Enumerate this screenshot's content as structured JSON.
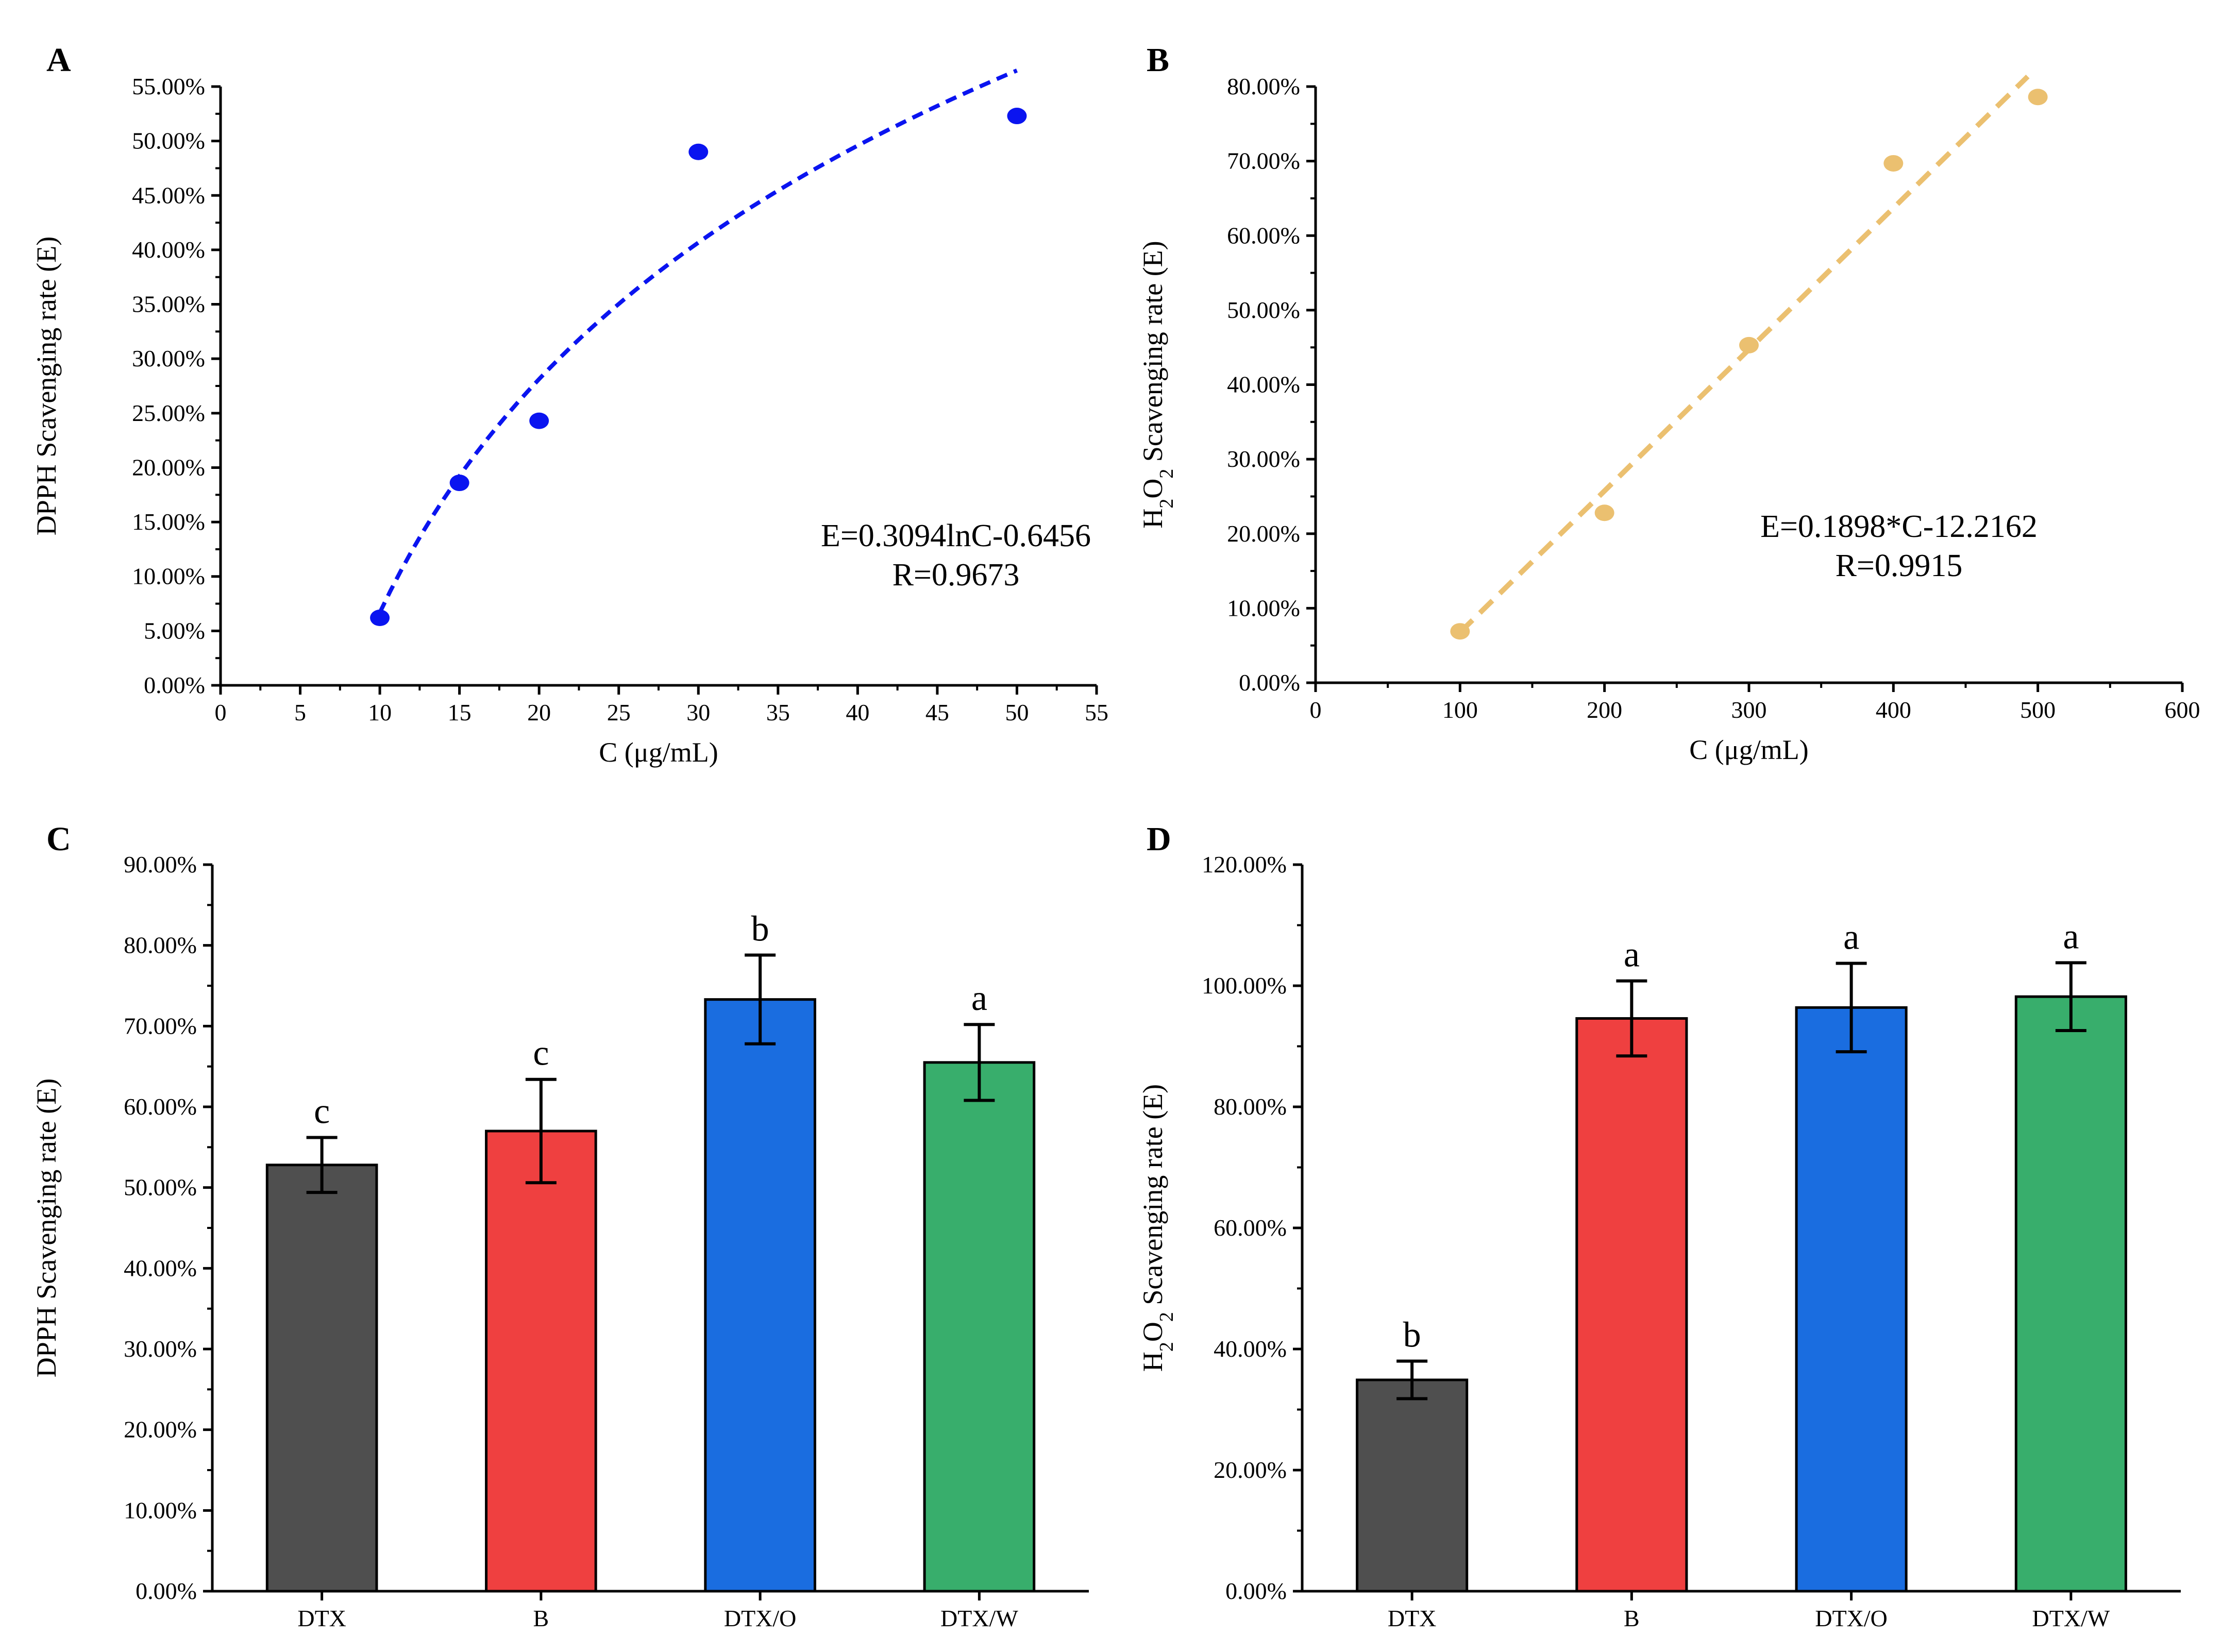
{
  "chart_data": [
    {
      "panel": "A",
      "type": "scatter",
      "xlabel": "C (μg/mL)",
      "ylabel": "DPPH Scavenging rate (E)",
      "x_ticks": [
        "0",
        "5",
        "10",
        "15",
        "20",
        "25",
        "30",
        "35",
        "40",
        "45",
        "50",
        "55"
      ],
      "y_ticks": [
        "0.00%",
        "5.00%",
        "10.00%",
        "15.00%",
        "20.00%",
        "25.00%",
        "30.00%",
        "35.00%",
        "40.00%",
        "45.00%",
        "50.00%",
        "55.00%"
      ],
      "xlim": [
        0,
        55
      ],
      "ylim": [
        0,
        55
      ],
      "series": [
        {
          "name": "DPPH",
          "x": [
            10,
            15,
            20,
            30,
            50
          ],
          "y": [
            6.2,
            18.6,
            24.3,
            49.0,
            52.3
          ],
          "color": "#0a14f0"
        }
      ],
      "fit": {
        "kind": "log",
        "a": 30.94,
        "b": -64.56,
        "x_range": [
          10,
          50
        ],
        "style": "dashed",
        "color": "#0a14f0"
      },
      "annotations": [
        "E=0.3094lnC-0.6456",
        "R=0.9673"
      ]
    },
    {
      "panel": "B",
      "type": "scatter",
      "xlabel": "C (μg/mL)",
      "ylabel": "H2O2 Scavenging rate (E)",
      "x_ticks": [
        "0",
        "100",
        "200",
        "300",
        "400",
        "500",
        "600"
      ],
      "y_ticks": [
        "0.00%",
        "10.00%",
        "20.00%",
        "30.00%",
        "40.00%",
        "50.00%",
        "60.00%",
        "70.00%",
        "80.00%"
      ],
      "xlim": [
        0,
        600
      ],
      "ylim": [
        0,
        80
      ],
      "series": [
        {
          "name": "H2O2",
          "x": [
            100,
            200,
            300,
            400,
            500
          ],
          "y": [
            6.9,
            22.8,
            45.3,
            69.7,
            78.6
          ],
          "color": "#ebc070"
        }
      ],
      "fit": {
        "kind": "linear",
        "a": 0.1898,
        "b": -12.2162,
        "x_range": [
          100,
          493
        ],
        "style": "dashed",
        "color": "#ebc070"
      },
      "annotations": [
        "E=0.1898*C-12.2162",
        "R=0.9915"
      ]
    },
    {
      "panel": "C",
      "type": "bar",
      "ylabel": "DPPH Scavenging rate (E)",
      "categories": [
        "DTX",
        "B",
        "DTX/O",
        "DTX/W"
      ],
      "values": [
        52.8,
        57.0,
        73.3,
        65.5
      ],
      "errors": [
        3.4,
        6.4,
        5.5,
        4.7
      ],
      "letters": [
        "c",
        "c",
        "b",
        "a"
      ],
      "colors": [
        "#4f4f4f",
        "#ef4040",
        "#1a6de0",
        "#38ae6c"
      ],
      "y_ticks": [
        "0.00%",
        "10.00%",
        "20.00%",
        "30.00%",
        "40.00%",
        "50.00%",
        "60.00%",
        "70.00%",
        "80.00%",
        "90.00%"
      ],
      "ylim": [
        0,
        90
      ]
    },
    {
      "panel": "D",
      "type": "bar",
      "ylabel": "H2O2 Scavenging rate (E)",
      "categories": [
        "DTX",
        "B",
        "DTX/O",
        "DTX/W"
      ],
      "values": [
        34.9,
        94.6,
        96.4,
        98.2
      ],
      "errors": [
        3.1,
        6.2,
        7.3,
        5.6
      ],
      "letters": [
        "b",
        "a",
        "a",
        "a"
      ],
      "colors": [
        "#4f4f4f",
        "#ef4040",
        "#1a6de0",
        "#38ae6c"
      ],
      "y_ticks": [
        "0.00%",
        "20.00%",
        "40.00%",
        "60.00%",
        "80.00%",
        "100.00%",
        "120.00%"
      ],
      "ylim": [
        0,
        120
      ]
    }
  ]
}
